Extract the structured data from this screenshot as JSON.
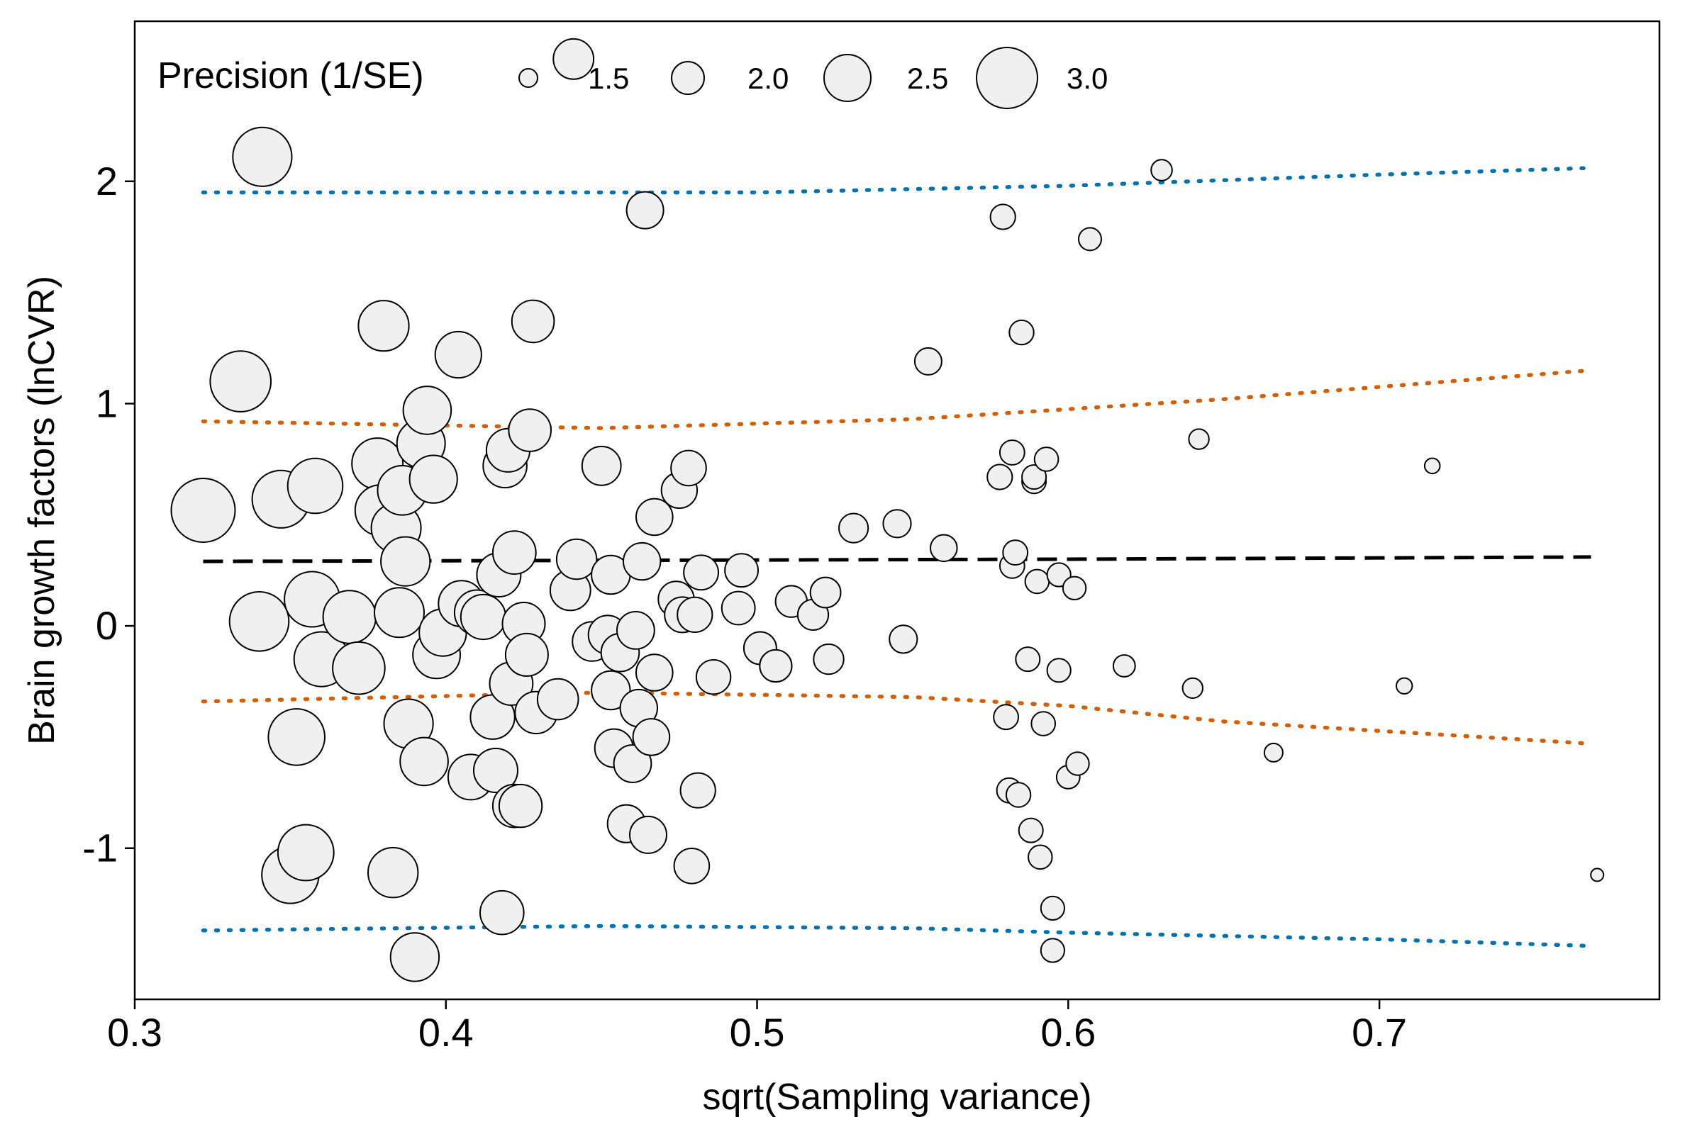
{
  "chart_data": {
    "type": "scatter",
    "title": "",
    "xlabel": "sqrt(Sampling variance)",
    "ylabel": "Brain growth factors (lnCVR)",
    "xlim": [
      0.3,
      0.79
    ],
    "ylim": [
      -1.68,
      2.72
    ],
    "x_ticks": [
      0.3,
      0.4,
      0.5,
      0.6,
      0.7
    ],
    "x_tick_labels": [
      "0.3",
      "0.4",
      "0.5",
      "0.6",
      "0.7"
    ],
    "y_ticks": [
      -1,
      0,
      1,
      2
    ],
    "y_tick_labels": [
      "-1",
      "0",
      "1",
      "2"
    ],
    "grid": false,
    "size_legend": {
      "title": "Precision (1/SE)",
      "placement": "top-left, inside plot",
      "values": [
        1.5,
        2.0,
        2.5,
        3.0
      ],
      "labels": [
        "1.5",
        "2.0",
        "2.5",
        "3.0"
      ]
    },
    "point_style": {
      "fill": "#f0f0f0",
      "stroke": "#000000"
    },
    "reference_lines": [
      {
        "role": "mean",
        "style": "dashed",
        "color": "#000000",
        "points": [
          [
            0.322,
            0.29
          ],
          [
            0.6,
            0.3
          ],
          [
            0.768,
            0.31
          ]
        ]
      },
      {
        "role": "inner-upper",
        "style": "dotted",
        "color": "#d55e00",
        "points": [
          [
            0.322,
            0.92
          ],
          [
            0.45,
            0.89
          ],
          [
            0.55,
            0.93
          ],
          [
            0.65,
            1.02
          ],
          [
            0.768,
            1.15
          ]
        ]
      },
      {
        "role": "inner-lower",
        "style": "dotted",
        "color": "#d55e00",
        "points": [
          [
            0.322,
            -0.34
          ],
          [
            0.45,
            -0.3
          ],
          [
            0.55,
            -0.32
          ],
          [
            0.6,
            -0.36
          ],
          [
            0.65,
            -0.43
          ],
          [
            0.768,
            -0.53
          ]
        ]
      },
      {
        "role": "outer-upper",
        "style": "dotted",
        "color": "#0072b2",
        "points": [
          [
            0.322,
            1.95
          ],
          [
            0.5,
            1.95
          ],
          [
            0.6,
            1.98
          ],
          [
            0.7,
            2.03
          ],
          [
            0.768,
            2.06
          ]
        ]
      },
      {
        "role": "outer-lower",
        "style": "dotted",
        "color": "#0072b2",
        "points": [
          [
            0.322,
            -1.37
          ],
          [
            0.45,
            -1.35
          ],
          [
            0.55,
            -1.36
          ],
          [
            0.6,
            -1.38
          ],
          [
            0.7,
            -1.41
          ],
          [
            0.768,
            -1.44
          ]
        ]
      }
    ],
    "points": [
      {
        "x": 0.322,
        "y": 0.52,
        "precision": 3.1
      },
      {
        "x": 0.334,
        "y": 1.1,
        "precision": 2.99
      },
      {
        "x": 0.341,
        "y": 2.11,
        "precision": 2.93
      },
      {
        "x": 0.34,
        "y": 0.02,
        "precision": 2.94
      },
      {
        "x": 0.347,
        "y": 0.57,
        "precision": 2.88
      },
      {
        "x": 0.35,
        "y": -1.12,
        "precision": 2.86
      },
      {
        "x": 0.352,
        "y": -0.5,
        "precision": 2.84
      },
      {
        "x": 0.355,
        "y": -1.02,
        "precision": 2.82
      },
      {
        "x": 0.357,
        "y": 0.12,
        "precision": 2.8
      },
      {
        "x": 0.358,
        "y": 0.63,
        "precision": 2.79
      },
      {
        "x": 0.36,
        "y": -0.15,
        "precision": 2.78
      },
      {
        "x": 0.369,
        "y": 0.04,
        "precision": 2.71
      },
      {
        "x": 0.372,
        "y": -0.19,
        "precision": 2.69
      },
      {
        "x": 0.378,
        "y": 0.73,
        "precision": 2.65
      },
      {
        "x": 0.379,
        "y": 0.52,
        "precision": 2.64
      },
      {
        "x": 0.38,
        "y": 1.35,
        "precision": 2.63
      },
      {
        "x": 0.383,
        "y": -1.11,
        "precision": 2.61
      },
      {
        "x": 0.384,
        "y": 0.44,
        "precision": 2.6
      },
      {
        "x": 0.385,
        "y": 0.06,
        "precision": 2.6
      },
      {
        "x": 0.386,
        "y": 0.61,
        "precision": 2.59
      },
      {
        "x": 0.387,
        "y": 0.29,
        "precision": 2.58
      },
      {
        "x": 0.388,
        "y": -0.44,
        "precision": 2.58
      },
      {
        "x": 0.39,
        "y": -1.49,
        "precision": 2.56
      },
      {
        "x": 0.392,
        "y": 0.82,
        "precision": 2.55
      },
      {
        "x": 0.393,
        "y": -0.61,
        "precision": 2.54
      },
      {
        "x": 0.394,
        "y": 0.97,
        "precision": 2.54
      },
      {
        "x": 0.396,
        "y": 0.66,
        "precision": 2.53
      },
      {
        "x": 0.397,
        "y": -0.13,
        "precision": 2.52
      },
      {
        "x": 0.399,
        "y": -0.03,
        "precision": 2.51
      },
      {
        "x": 0.404,
        "y": 1.22,
        "precision": 2.48
      },
      {
        "x": 0.405,
        "y": 0.1,
        "precision": 2.47
      },
      {
        "x": 0.408,
        "y": -0.68,
        "precision": 2.45
      },
      {
        "x": 0.41,
        "y": 0.06,
        "precision": 2.44
      },
      {
        "x": 0.412,
        "y": 0.04,
        "precision": 2.43
      },
      {
        "x": 0.415,
        "y": -0.41,
        "precision": 2.41
      },
      {
        "x": 0.416,
        "y": -0.65,
        "precision": 2.4
      },
      {
        "x": 0.417,
        "y": 0.23,
        "precision": 2.4
      },
      {
        "x": 0.418,
        "y": -1.29,
        "precision": 2.39
      },
      {
        "x": 0.419,
        "y": 0.72,
        "precision": 2.39
      },
      {
        "x": 0.42,
        "y": 0.79,
        "precision": 2.38
      },
      {
        "x": 0.421,
        "y": -0.26,
        "precision": 2.37
      },
      {
        "x": 0.422,
        "y": 0.33,
        "precision": 2.37
      },
      {
        "x": 0.422,
        "y": -0.81,
        "precision": 2.37
      },
      {
        "x": 0.424,
        "y": -0.81,
        "precision": 2.36
      },
      {
        "x": 0.425,
        "y": 0.01,
        "precision": 2.35
      },
      {
        "x": 0.426,
        "y": -0.13,
        "precision": 2.35
      },
      {
        "x": 0.427,
        "y": 0.88,
        "precision": 2.34
      },
      {
        "x": 0.428,
        "y": 1.37,
        "precision": 2.34
      },
      {
        "x": 0.429,
        "y": -0.39,
        "precision": 2.33
      },
      {
        "x": 0.436,
        "y": -0.33,
        "precision": 2.29
      },
      {
        "x": 0.44,
        "y": 0.16,
        "precision": 2.27
      },
      {
        "x": 0.441,
        "y": 2.55,
        "precision": 2.27
      },
      {
        "x": 0.442,
        "y": 0.3,
        "precision": 2.26
      },
      {
        "x": 0.447,
        "y": -0.07,
        "precision": 2.24
      },
      {
        "x": 0.45,
        "y": 0.72,
        "precision": 2.22
      },
      {
        "x": 0.452,
        "y": -0.04,
        "precision": 2.21
      },
      {
        "x": 0.453,
        "y": 0.23,
        "precision": 2.21
      },
      {
        "x": 0.453,
        "y": -0.29,
        "precision": 2.21
      },
      {
        "x": 0.454,
        "y": -0.55,
        "precision": 2.2
      },
      {
        "x": 0.456,
        "y": -0.12,
        "precision": 2.19
      },
      {
        "x": 0.458,
        "y": -0.89,
        "precision": 2.18
      },
      {
        "x": 0.46,
        "y": -0.62,
        "precision": 2.17
      },
      {
        "x": 0.461,
        "y": -0.02,
        "precision": 2.17
      },
      {
        "x": 0.462,
        "y": -0.37,
        "precision": 2.16
      },
      {
        "x": 0.463,
        "y": 0.29,
        "precision": 2.16
      },
      {
        "x": 0.464,
        "y": 1.87,
        "precision": 2.15
      },
      {
        "x": 0.465,
        "y": -0.94,
        "precision": 2.15
      },
      {
        "x": 0.466,
        "y": -0.5,
        "precision": 2.14
      },
      {
        "x": 0.467,
        "y": -0.21,
        "precision": 2.14
      },
      {
        "x": 0.467,
        "y": 0.49,
        "precision": 2.14
      },
      {
        "x": 0.474,
        "y": 0.12,
        "precision": 2.11
      },
      {
        "x": 0.475,
        "y": 0.61,
        "precision": 2.11
      },
      {
        "x": 0.476,
        "y": 0.05,
        "precision": 2.1
      },
      {
        "x": 0.478,
        "y": 0.71,
        "precision": 2.09
      },
      {
        "x": 0.479,
        "y": -1.08,
        "precision": 2.09
      },
      {
        "x": 0.48,
        "y": 0.05,
        "precision": 2.08
      },
      {
        "x": 0.481,
        "y": -0.74,
        "precision": 2.08
      },
      {
        "x": 0.482,
        "y": 0.24,
        "precision": 2.07
      },
      {
        "x": 0.486,
        "y": -0.23,
        "precision": 2.06
      },
      {
        "x": 0.494,
        "y": 0.08,
        "precision": 2.02
      },
      {
        "x": 0.495,
        "y": 0.25,
        "precision": 2.02
      },
      {
        "x": 0.501,
        "y": -0.1,
        "precision": 2.0
      },
      {
        "x": 0.506,
        "y": -0.18,
        "precision": 1.98
      },
      {
        "x": 0.511,
        "y": 0.11,
        "precision": 1.96
      },
      {
        "x": 0.518,
        "y": 0.05,
        "precision": 1.93
      },
      {
        "x": 0.522,
        "y": 0.15,
        "precision": 1.92
      },
      {
        "x": 0.523,
        "y": -0.15,
        "precision": 1.91
      },
      {
        "x": 0.531,
        "y": 0.44,
        "precision": 1.88
      },
      {
        "x": 0.545,
        "y": 0.46,
        "precision": 1.83
      },
      {
        "x": 0.547,
        "y": -0.06,
        "precision": 1.83
      },
      {
        "x": 0.555,
        "y": 1.19,
        "precision": 1.8
      },
      {
        "x": 0.56,
        "y": 0.35,
        "precision": 1.79
      },
      {
        "x": 0.578,
        "y": 0.67,
        "precision": 1.73
      },
      {
        "x": 0.579,
        "y": 1.84,
        "precision": 1.73
      },
      {
        "x": 0.58,
        "y": -0.41,
        "precision": 1.72
      },
      {
        "x": 0.581,
        "y": -0.74,
        "precision": 1.72
      },
      {
        "x": 0.582,
        "y": 0.78,
        "precision": 1.72
      },
      {
        "x": 0.582,
        "y": 0.27,
        "precision": 1.72
      },
      {
        "x": 0.583,
        "y": 0.33,
        "precision": 1.72
      },
      {
        "x": 0.584,
        "y": -0.76,
        "precision": 1.71
      },
      {
        "x": 0.585,
        "y": 1.32,
        "precision": 1.71
      },
      {
        "x": 0.587,
        "y": -0.15,
        "precision": 1.7
      },
      {
        "x": 0.588,
        "y": -0.92,
        "precision": 1.7
      },
      {
        "x": 0.589,
        "y": 0.65,
        "precision": 1.7
      },
      {
        "x": 0.589,
        "y": 0.67,
        "precision": 1.7
      },
      {
        "x": 0.59,
        "y": 0.2,
        "precision": 1.69
      },
      {
        "x": 0.591,
        "y": -1.04,
        "precision": 1.69
      },
      {
        "x": 0.592,
        "y": -0.44,
        "precision": 1.69
      },
      {
        "x": 0.593,
        "y": 0.75,
        "precision": 1.69
      },
      {
        "x": 0.595,
        "y": -1.27,
        "precision": 1.68
      },
      {
        "x": 0.595,
        "y": -1.46,
        "precision": 1.68
      },
      {
        "x": 0.597,
        "y": 0.23,
        "precision": 1.68
      },
      {
        "x": 0.597,
        "y": -0.2,
        "precision": 1.68
      },
      {
        "x": 0.6,
        "y": -0.68,
        "precision": 1.67
      },
      {
        "x": 0.602,
        "y": 0.17,
        "precision": 1.66
      },
      {
        "x": 0.603,
        "y": -0.62,
        "precision": 1.66
      },
      {
        "x": 0.607,
        "y": 1.74,
        "precision": 1.65
      },
      {
        "x": 0.618,
        "y": -0.18,
        "precision": 1.62
      },
      {
        "x": 0.63,
        "y": 2.05,
        "precision": 1.59
      },
      {
        "x": 0.64,
        "y": -0.28,
        "precision": 1.56
      },
      {
        "x": 0.642,
        "y": 0.84,
        "precision": 1.56
      },
      {
        "x": 0.666,
        "y": -0.57,
        "precision": 1.5
      },
      {
        "x": 0.708,
        "y": -0.27,
        "precision": 1.41
      },
      {
        "x": 0.717,
        "y": 0.72,
        "precision": 1.39
      },
      {
        "x": 0.77,
        "y": -1.12,
        "precision": 1.3
      }
    ]
  }
}
